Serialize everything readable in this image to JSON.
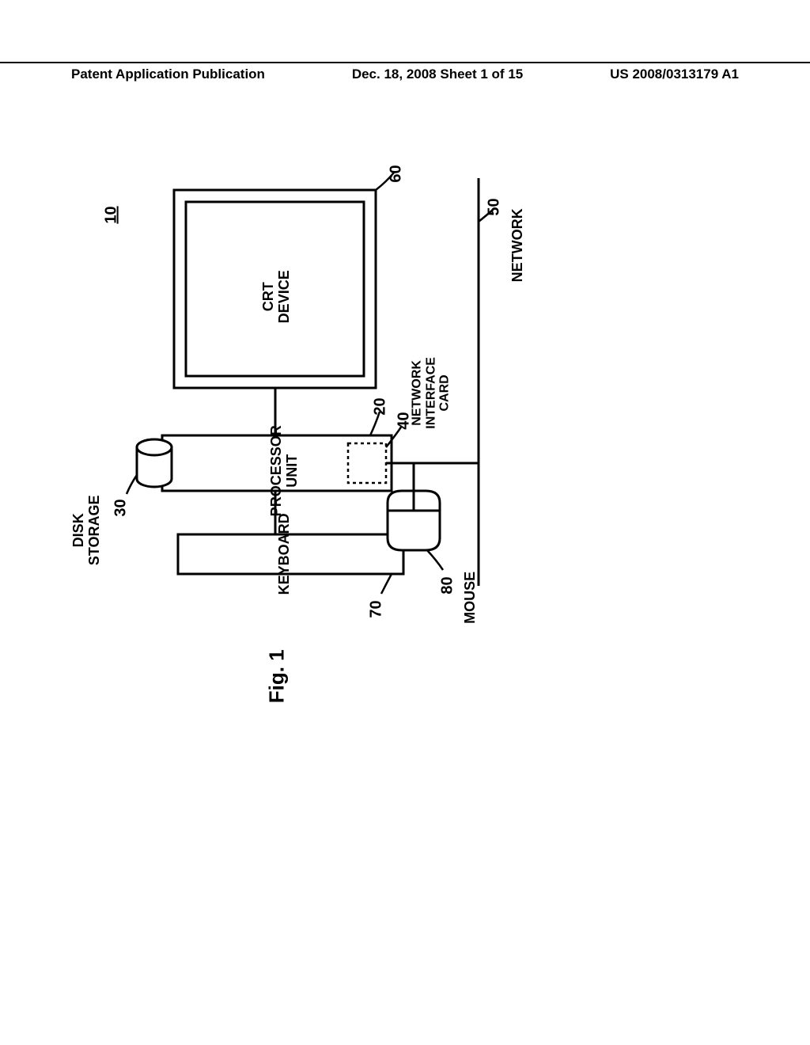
{
  "header": {
    "left": "Patent Application Publication",
    "center": "Dec. 18, 2008  Sheet 1 of 15",
    "right": "US 2008/0313179 A1"
  },
  "figure_label": "Fig. 1",
  "blocks": {
    "crt": {
      "label": "CRT\nDEVICE",
      "ref": "60"
    },
    "processor": {
      "label": "PROCESSOR\nUNIT",
      "ref": "20"
    },
    "keyboard": {
      "label": "KEYBOARD",
      "ref": "70"
    },
    "nic": {
      "label": "NETWORK\nINTERFACE\nCARD",
      "ref": "40"
    },
    "network": {
      "label": "NETWORK",
      "ref": "50"
    },
    "mouse": {
      "label": "MOUSE",
      "ref": "80"
    },
    "disk": {
      "label": "DISK\nSTORAGE",
      "ref": "30"
    },
    "system": {
      "ref": "10"
    }
  },
  "style": {
    "stroke": "#000000",
    "stroke_width": 3,
    "dash": "4,4",
    "bg": "#ffffff",
    "font_size_label": 18,
    "font_size_ref": 20
  }
}
